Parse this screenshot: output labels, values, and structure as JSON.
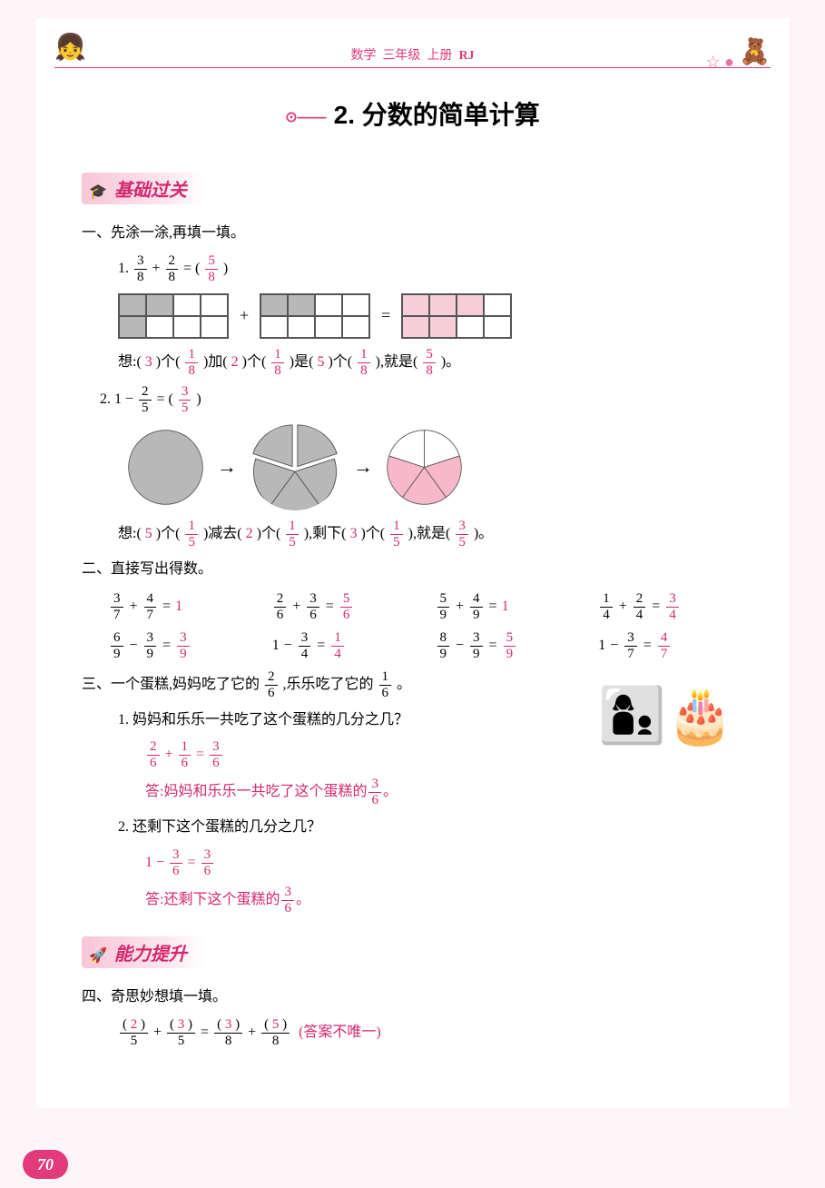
{
  "header": {
    "subject": "数学",
    "grade": "三年级",
    "volume": "上册",
    "series": "RJ"
  },
  "title": "2. 分数的简单计算",
  "section1": {
    "banner": "基础过关",
    "q1_heading": "一、先涂一涂,再填一填。",
    "q1_1": {
      "label": "1.",
      "lhs_a_num": "3",
      "lhs_a_den": "8",
      "lhs_b_num": "2",
      "lhs_b_den": "8",
      "result_num": "5",
      "result_den": "8",
      "grid_cols": 4,
      "grid_rows": 2,
      "g1_filled": [
        0,
        1,
        4
      ],
      "g2_filled": [
        0,
        1
      ],
      "g3_filled": [
        0,
        1,
        2,
        4,
        5
      ],
      "g1_color": "#b8b8b8",
      "g2_color": "#b8b8b8",
      "g3_color": "#f7cdd9",
      "explain_prefix": "想:(",
      "a1": "3",
      "t1": ")个(",
      "f1_num": "1",
      "f1_den": "8",
      "t2": ")加(",
      "a2": "2",
      "t3": ")个(",
      "f2_num": "1",
      "f2_den": "8",
      "t4": ")是(",
      "a3": "5",
      "t5": ")个(",
      "f3_num": "1",
      "f3_den": "8",
      "t6": "),就是(",
      "fr_num": "5",
      "fr_den": "8",
      "t7": ")。"
    },
    "q1_2": {
      "label": "2.",
      "lhs": "1 −",
      "b_num": "2",
      "b_den": "5",
      "result_num": "3",
      "result_den": "5",
      "pie_colors": {
        "whole": "#b8b8b8",
        "part": "#b8b8b8",
        "rest": "#f7b8ca"
      },
      "explain_prefix": "想:(",
      "a1": "5",
      "t1": ")个(",
      "f1_num": "1",
      "f1_den": "5",
      "t2": ")减去(",
      "a2": "2",
      "t3": ")个(",
      "f2_num": "1",
      "f2_den": "5",
      "t4": "),剩下(",
      "a3": "3",
      "t5": ")个(",
      "f3_num": "1",
      "f3_den": "5",
      "t6": "),就是(",
      "fr_num": "3",
      "fr_den": "5",
      "t7": ")。"
    },
    "q2_heading": "二、直接写出得数。",
    "q2_items": [
      {
        "a": "3",
        "ad": "7",
        "op": "+",
        "b": "4",
        "bd": "7",
        "r": "1",
        "rd": ""
      },
      {
        "a": "2",
        "ad": "6",
        "op": "+",
        "b": "3",
        "bd": "6",
        "r": "5",
        "rd": "6"
      },
      {
        "a": "5",
        "ad": "9",
        "op": "+",
        "b": "4",
        "bd": "9",
        "r": "1",
        "rd": ""
      },
      {
        "a": "1",
        "ad": "4",
        "op": "+",
        "b": "2",
        "bd": "4",
        "r": "3",
        "rd": "4"
      },
      {
        "a": "6",
        "ad": "9",
        "op": "−",
        "b": "3",
        "bd": "9",
        "r": "3",
        "rd": "9"
      },
      {
        "a": "1",
        "ad": "",
        "op": "−",
        "b": "3",
        "bd": "4",
        "r": "1",
        "rd": "4"
      },
      {
        "a": "8",
        "ad": "9",
        "op": "−",
        "b": "3",
        "bd": "9",
        "r": "5",
        "rd": "9"
      },
      {
        "a": "1",
        "ad": "",
        "op": "−",
        "b": "3",
        "bd": "7",
        "r": "4",
        "rd": "7"
      }
    ],
    "q3_heading_pre": "三、一个蛋糕,妈妈吃了它的",
    "q3_f1_num": "2",
    "q3_f1_den": "6",
    "q3_heading_mid": ",乐乐吃了它的",
    "q3_f2_num": "1",
    "q3_f2_den": "6",
    "q3_heading_end": "。",
    "q3_1": {
      "label": "1.",
      "question": "妈妈和乐乐一共吃了这个蛋糕的几分之几？",
      "calc_a_num": "2",
      "calc_a_den": "6",
      "calc_b_num": "1",
      "calc_b_den": "6",
      "calc_r_num": "3",
      "calc_r_den": "6",
      "answer_pre": "答:妈妈和乐乐一共吃了这个蛋糕的",
      "answer_r_num": "3",
      "answer_r_den": "6",
      "answer_end": "。"
    },
    "q3_2": {
      "label": "2.",
      "question": "还剩下这个蛋糕的几分之几？",
      "calc_a": "1",
      "calc_b_num": "3",
      "calc_b_den": "6",
      "calc_r_num": "3",
      "calc_r_den": "6",
      "answer_pre": "答:还剩下这个蛋糕的",
      "answer_r_num": "3",
      "answer_r_den": "6",
      "answer_end": "。"
    }
  },
  "section2": {
    "banner": "能力提升",
    "q4_heading": "四、奇思妙想填一填。",
    "q4": {
      "a": "2",
      "ad": "5",
      "b": "3",
      "bd": "5",
      "c": "3",
      "cd": "8",
      "d": "5",
      "dd": "8",
      "note": "(答案不唯一)"
    }
  },
  "page_number": "70"
}
